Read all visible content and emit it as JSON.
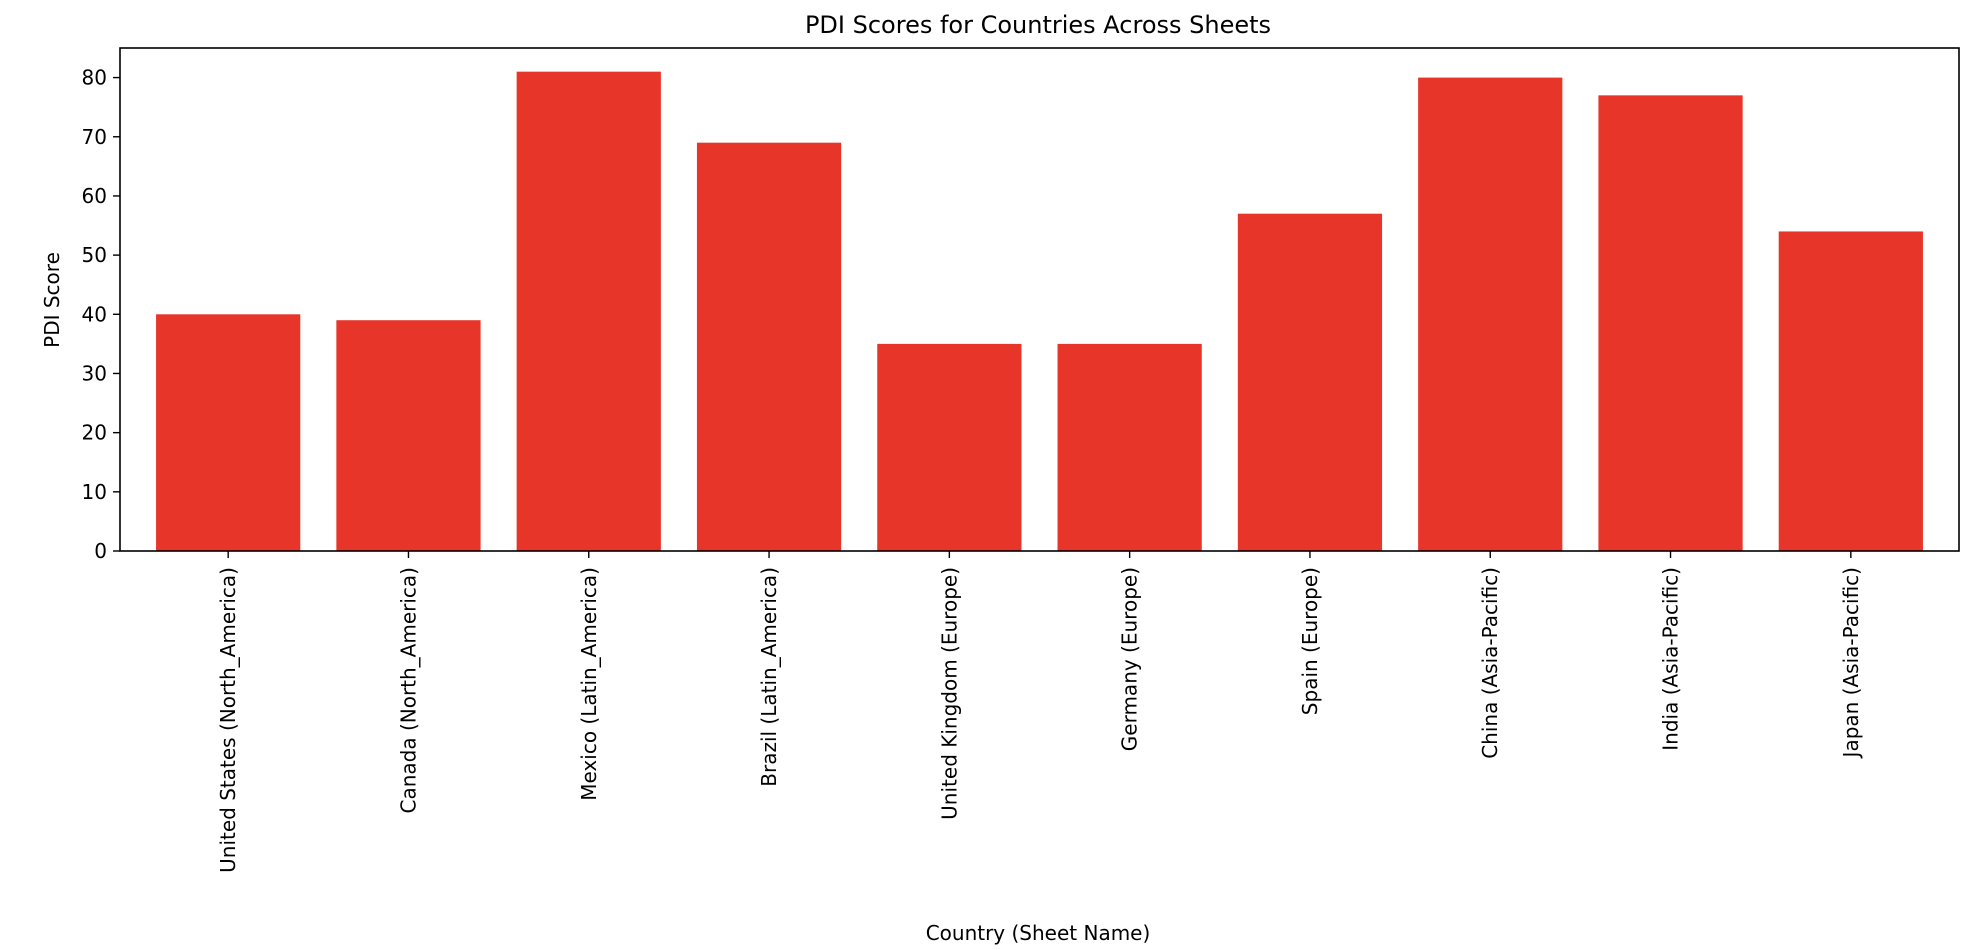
{
  "chart_data": {
    "type": "bar",
    "title": "PDI Scores for Countries Across Sheets",
    "xlabel": "Country (Sheet Name)",
    "ylabel": "PDI Score",
    "categories": [
      "United States (North_America)",
      "Canada (North_America)",
      "Mexico (Latin_America)",
      "Brazil (Latin_America)",
      "United Kingdom (Europe)",
      "Germany (Europe)",
      "Spain (Europe)",
      "China (Asia-Pacific)",
      "India (Asia-Pacific)",
      "Japan (Asia-Pacific)"
    ],
    "values": [
      40,
      39,
      81,
      69,
      35,
      35,
      57,
      80,
      77,
      54
    ],
    "ylim": [
      0,
      85
    ],
    "yticks": [
      0,
      10,
      20,
      30,
      40,
      50,
      60,
      70,
      80
    ],
    "grid": false,
    "bar_color": "#e8352a"
  }
}
